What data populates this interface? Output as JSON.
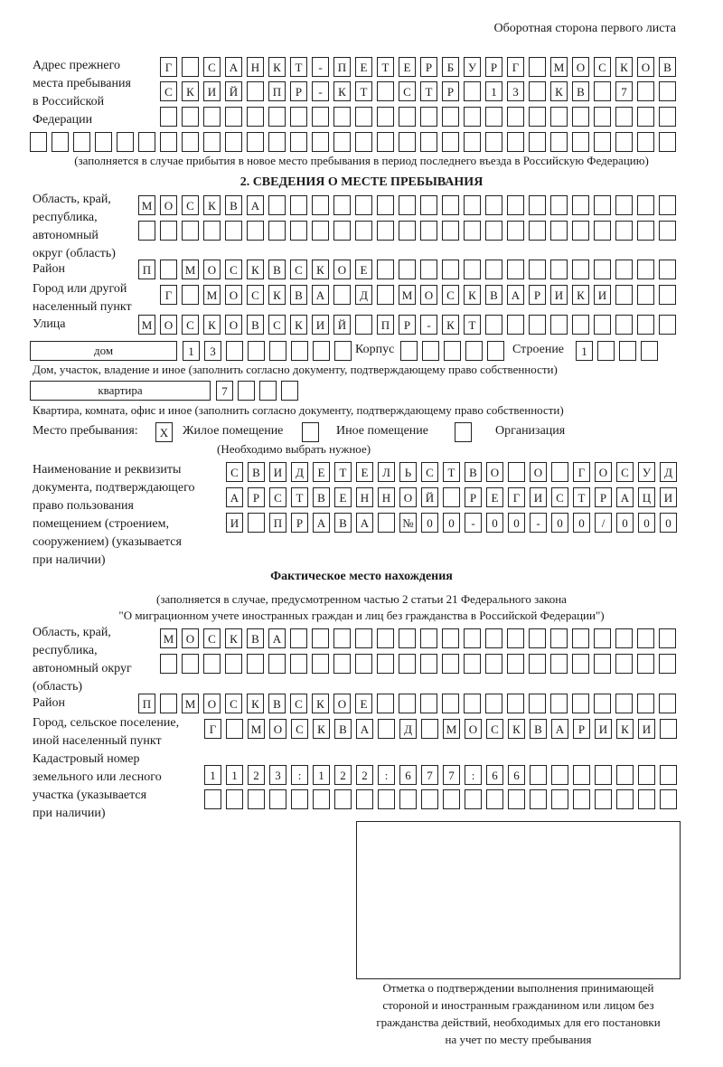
{
  "header": {
    "side_label": "Оборотная сторона первого листа"
  },
  "prev_address": {
    "label": "Адрес прежнего\nместа пребывания\nв Российской\nФедерации",
    "rows": [
      [
        "Г",
        "",
        "С",
        "А",
        "Н",
        "К",
        "Т",
        "-",
        "П",
        "Е",
        "Т",
        "Е",
        "Р",
        "Б",
        "У",
        "Р",
        "Г",
        "",
        "М",
        "О",
        "С",
        "К",
        "О",
        "В"
      ],
      [
        "С",
        "К",
        "И",
        "Й",
        "",
        "П",
        "Р",
        "-",
        "К",
        "Т",
        "",
        "С",
        "Т",
        "Р",
        "",
        "1",
        "3",
        "",
        "К",
        "В",
        "",
        "7",
        "",
        ""
      ],
      [
        "",
        "",
        "",
        "",
        "",
        "",
        "",
        "",
        "",
        "",
        "",
        "",
        "",
        "",
        "",
        "",
        "",
        "",
        "",
        "",
        "",
        "",
        "",
        ""
      ],
      [
        "",
        "",
        "",
        "",
        "",
        "",
        "",
        "",
        "",
        "",
        "",
        "",
        "",
        "",
        "",
        "",
        "",
        "",
        "",
        "",
        "",
        "",
        "",
        "",
        "",
        "",
        "",
        "",
        "",
        ""
      ]
    ],
    "note": "(заполняется в случае прибытия в новое место пребывания в период последнего въезда в Российскую Федерацию)"
  },
  "section2": {
    "title": "2. СВЕДЕНИЯ О МЕСТЕ ПРЕБЫВАНИЯ",
    "region": {
      "label": "Область, край,\nреспублика,\nавтономный\nокруг (область)",
      "rows": [
        [
          "М",
          "О",
          "С",
          "К",
          "В",
          "А",
          "",
          "",
          "",
          "",
          "",
          "",
          "",
          "",
          "",
          "",
          "",
          "",
          "",
          "",
          "",
          "",
          "",
          "",
          ""
        ],
        [
          "",
          "",
          "",
          "",
          "",
          "",
          "",
          "",
          "",
          "",
          "",
          "",
          "",
          "",
          "",
          "",
          "",
          "",
          "",
          "",
          "",
          "",
          "",
          "",
          ""
        ]
      ]
    },
    "district": {
      "label": "Район",
      "cells": [
        "П",
        "",
        "М",
        "О",
        "С",
        "К",
        "В",
        "С",
        "К",
        "О",
        "Е",
        "",
        "",
        "",
        "",
        "",
        "",
        "",
        "",
        "",
        "",
        "",
        "",
        "",
        ""
      ]
    },
    "city": {
      "label": "Город или другой\nнаселенный пункт",
      "cells": [
        "Г",
        "",
        "М",
        "О",
        "С",
        "К",
        "В",
        "А",
        "",
        "Д",
        "",
        "М",
        "О",
        "С",
        "К",
        "В",
        "А",
        "Р",
        "И",
        "К",
        "И",
        "",
        "",
        ""
      ]
    },
    "street": {
      "label": "Улица",
      "cells": [
        "М",
        "О",
        "С",
        "К",
        "О",
        "В",
        "С",
        "К",
        "И",
        "Й",
        "",
        "П",
        "Р",
        "-",
        "К",
        "Т",
        "",
        "",
        "",
        "",
        "",
        "",
        "",
        "",
        ""
      ]
    },
    "house": {
      "type": "дом",
      "cells": [
        "1",
        "3",
        "",
        "",
        "",
        "",
        "",
        ""
      ],
      "korpus_label": "Корпус",
      "korpus_cells": [
        "",
        "",
        "",
        "",
        ""
      ],
      "stroenie_label": "Строение",
      "stroenie_cells": [
        "1",
        "",
        "",
        ""
      ],
      "note": "Дом, участок, владение и иное (заполнить согласно документу, подтверждающему право собственности)"
    },
    "apartment": {
      "type": "квартира",
      "cells": [
        "7",
        "",
        "",
        ""
      ],
      "note": "Квартира, комната, офис и иное (заполнить согласно документу, подтверждающему право собственности)"
    },
    "place_type": {
      "label": "Место пребывания:",
      "options": [
        {
          "mark": "X",
          "label": "Жилое помещение",
          "checked": true
        },
        {
          "mark": "",
          "label": "Иное помещение",
          "checked": false
        },
        {
          "mark": "",
          "label": "Организация",
          "checked": false
        }
      ],
      "note": "(Необходимо выбрать нужное)"
    },
    "document": {
      "label": "Наименование и реквизиты\nдокумента, подтверждающего\nправо пользования\nпомещением (строением,\nсооружением) (указывается\nпри наличии)",
      "rows": [
        [
          "С",
          "В",
          "И",
          "Д",
          "Е",
          "Т",
          "Е",
          "Л",
          "Ь",
          "С",
          "Т",
          "В",
          "О",
          "",
          "О",
          "",
          "Г",
          "О",
          "С",
          "У",
          "Д"
        ],
        [
          "А",
          "Р",
          "С",
          "Т",
          "В",
          "Е",
          "Н",
          "Н",
          "О",
          "Й",
          "",
          "Р",
          "Е",
          "Г",
          "И",
          "С",
          "Т",
          "Р",
          "А",
          "Ц",
          "И"
        ],
        [
          "И",
          "",
          "П",
          "Р",
          "А",
          "В",
          "А",
          "",
          "№",
          "0",
          "0",
          "-",
          "0",
          "0",
          "-",
          "0",
          "0",
          "/",
          "0",
          "0",
          "0"
        ]
      ]
    }
  },
  "actual": {
    "title": "Фактическое место нахождения",
    "note1": "(заполняется в случае, предусмотренном частью 2 статьи 21 Федерального закона",
    "note2": "\"О миграционном учете иностранных граждан и лиц без гражданства в Российской Федерации\")",
    "region": {
      "label": "Область, край,\nреспублика,\nавтономный округ\n(область)",
      "rows": [
        [
          "М",
          "О",
          "С",
          "К",
          "В",
          "А",
          "",
          "",
          "",
          "",
          "",
          "",
          "",
          "",
          "",
          "",
          "",
          "",
          "",
          "",
          "",
          "",
          "",
          ""
        ],
        [
          "",
          "",
          "",
          "",
          "",
          "",
          "",
          "",
          "",
          "",
          "",
          "",
          "",
          "",
          "",
          "",
          "",
          "",
          "",
          "",
          "",
          "",
          "",
          ""
        ]
      ]
    },
    "district": {
      "label": "Район",
      "cells": [
        "П",
        "",
        "М",
        "О",
        "С",
        "К",
        "В",
        "С",
        "К",
        "О",
        "Е",
        "",
        "",
        "",
        "",
        "",
        "",
        "",
        "",
        "",
        "",
        "",
        "",
        "",
        ""
      ]
    },
    "city": {
      "label": "Город, сельское поселение,\nиной населенный пункт",
      "cells": [
        "Г",
        "",
        "М",
        "О",
        "С",
        "К",
        "В",
        "А",
        "",
        "Д",
        "",
        "М",
        "О",
        "С",
        "К",
        "В",
        "А",
        "Р",
        "И",
        "К",
        "И",
        ""
      ]
    },
    "cadastral": {
      "label": "Кадастровый номер\nземельного или лесного\nучастка (указывается\nпри наличии)",
      "rows": [
        [
          "1",
          "1",
          "2",
          "3",
          ":",
          "1",
          "2",
          "2",
          ":",
          "6",
          "7",
          "7",
          ":",
          "6",
          "6",
          "",
          "",
          "",
          "",
          "",
          "",
          ""
        ],
        [
          "",
          "",
          "",
          "",
          "",
          "",
          "",
          "",
          "",
          "",
          "",
          "",
          "",
          "",
          "",
          "",
          "",
          "",
          "",
          "",
          "",
          ""
        ]
      ]
    }
  },
  "stamp": {
    "caption": "Отметка о подтверждении выполнения принимающей\nстороной и иностранным гражданином или лицом без\nгражданства действий, необходимых для его постановки\nна учет по месту пребывания"
  }
}
